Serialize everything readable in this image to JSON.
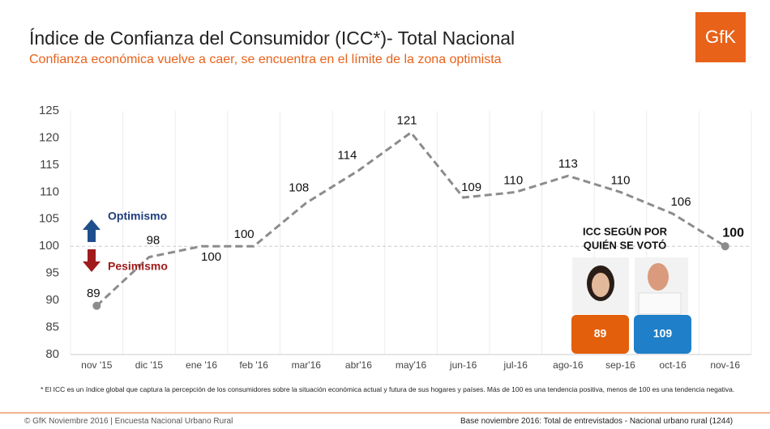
{
  "header": {
    "title": "Índice de Confianza del Consumidor (ICC*)- Total Nacional",
    "subtitle": "Confianza económica vuelve a caer, se encuentra en el límite de la zona optimista",
    "logo": "GfK"
  },
  "chart_data": {
    "type": "line",
    "categories": [
      "nov '15",
      "dic '15",
      "ene '16",
      "feb '16",
      "mar'16",
      "abr'16",
      "may'16",
      "jun-16",
      "jul-16",
      "ago-16",
      "sep-16",
      "oct-16",
      "nov-16"
    ],
    "series": [
      {
        "name": "ICC",
        "color": "#8c8c8c",
        "values": [
          89,
          98,
          100,
          100,
          108,
          114,
          121,
          109,
          110,
          113,
          110,
          106,
          100
        ]
      }
    ],
    "ylim": [
      80,
      125
    ],
    "yticks": [
      80,
      85,
      90,
      95,
      100,
      105,
      110,
      115,
      120,
      125
    ],
    "reference_line": 100,
    "annotations": [
      {
        "text": "Optimismo",
        "color": "#1f3d7a"
      },
      {
        "text": "Pesimismo",
        "color": "#a01c1c"
      }
    ]
  },
  "vote_panel": {
    "title": [
      "ICC SEGÚN POR",
      "QUIÉN SE VOTÓ"
    ],
    "values": [
      89,
      109
    ],
    "colors": [
      "#e35f0b",
      "#1f7fc9"
    ]
  },
  "footnote": "* El ICC es un índice global que captura la percepción de los consumidores sobre la situación económica actual y futura de sus hogares y países. Más de 100 es una tendencia positiva, menos de 100 es una tendencia negativa.",
  "footer": {
    "left": "© GfK Noviembre 2016 | Encuesta Nacional Urbano Rural",
    "right": "Base noviembre 2016: Total de entrevistados - Nacional urbano rural (1244)"
  }
}
